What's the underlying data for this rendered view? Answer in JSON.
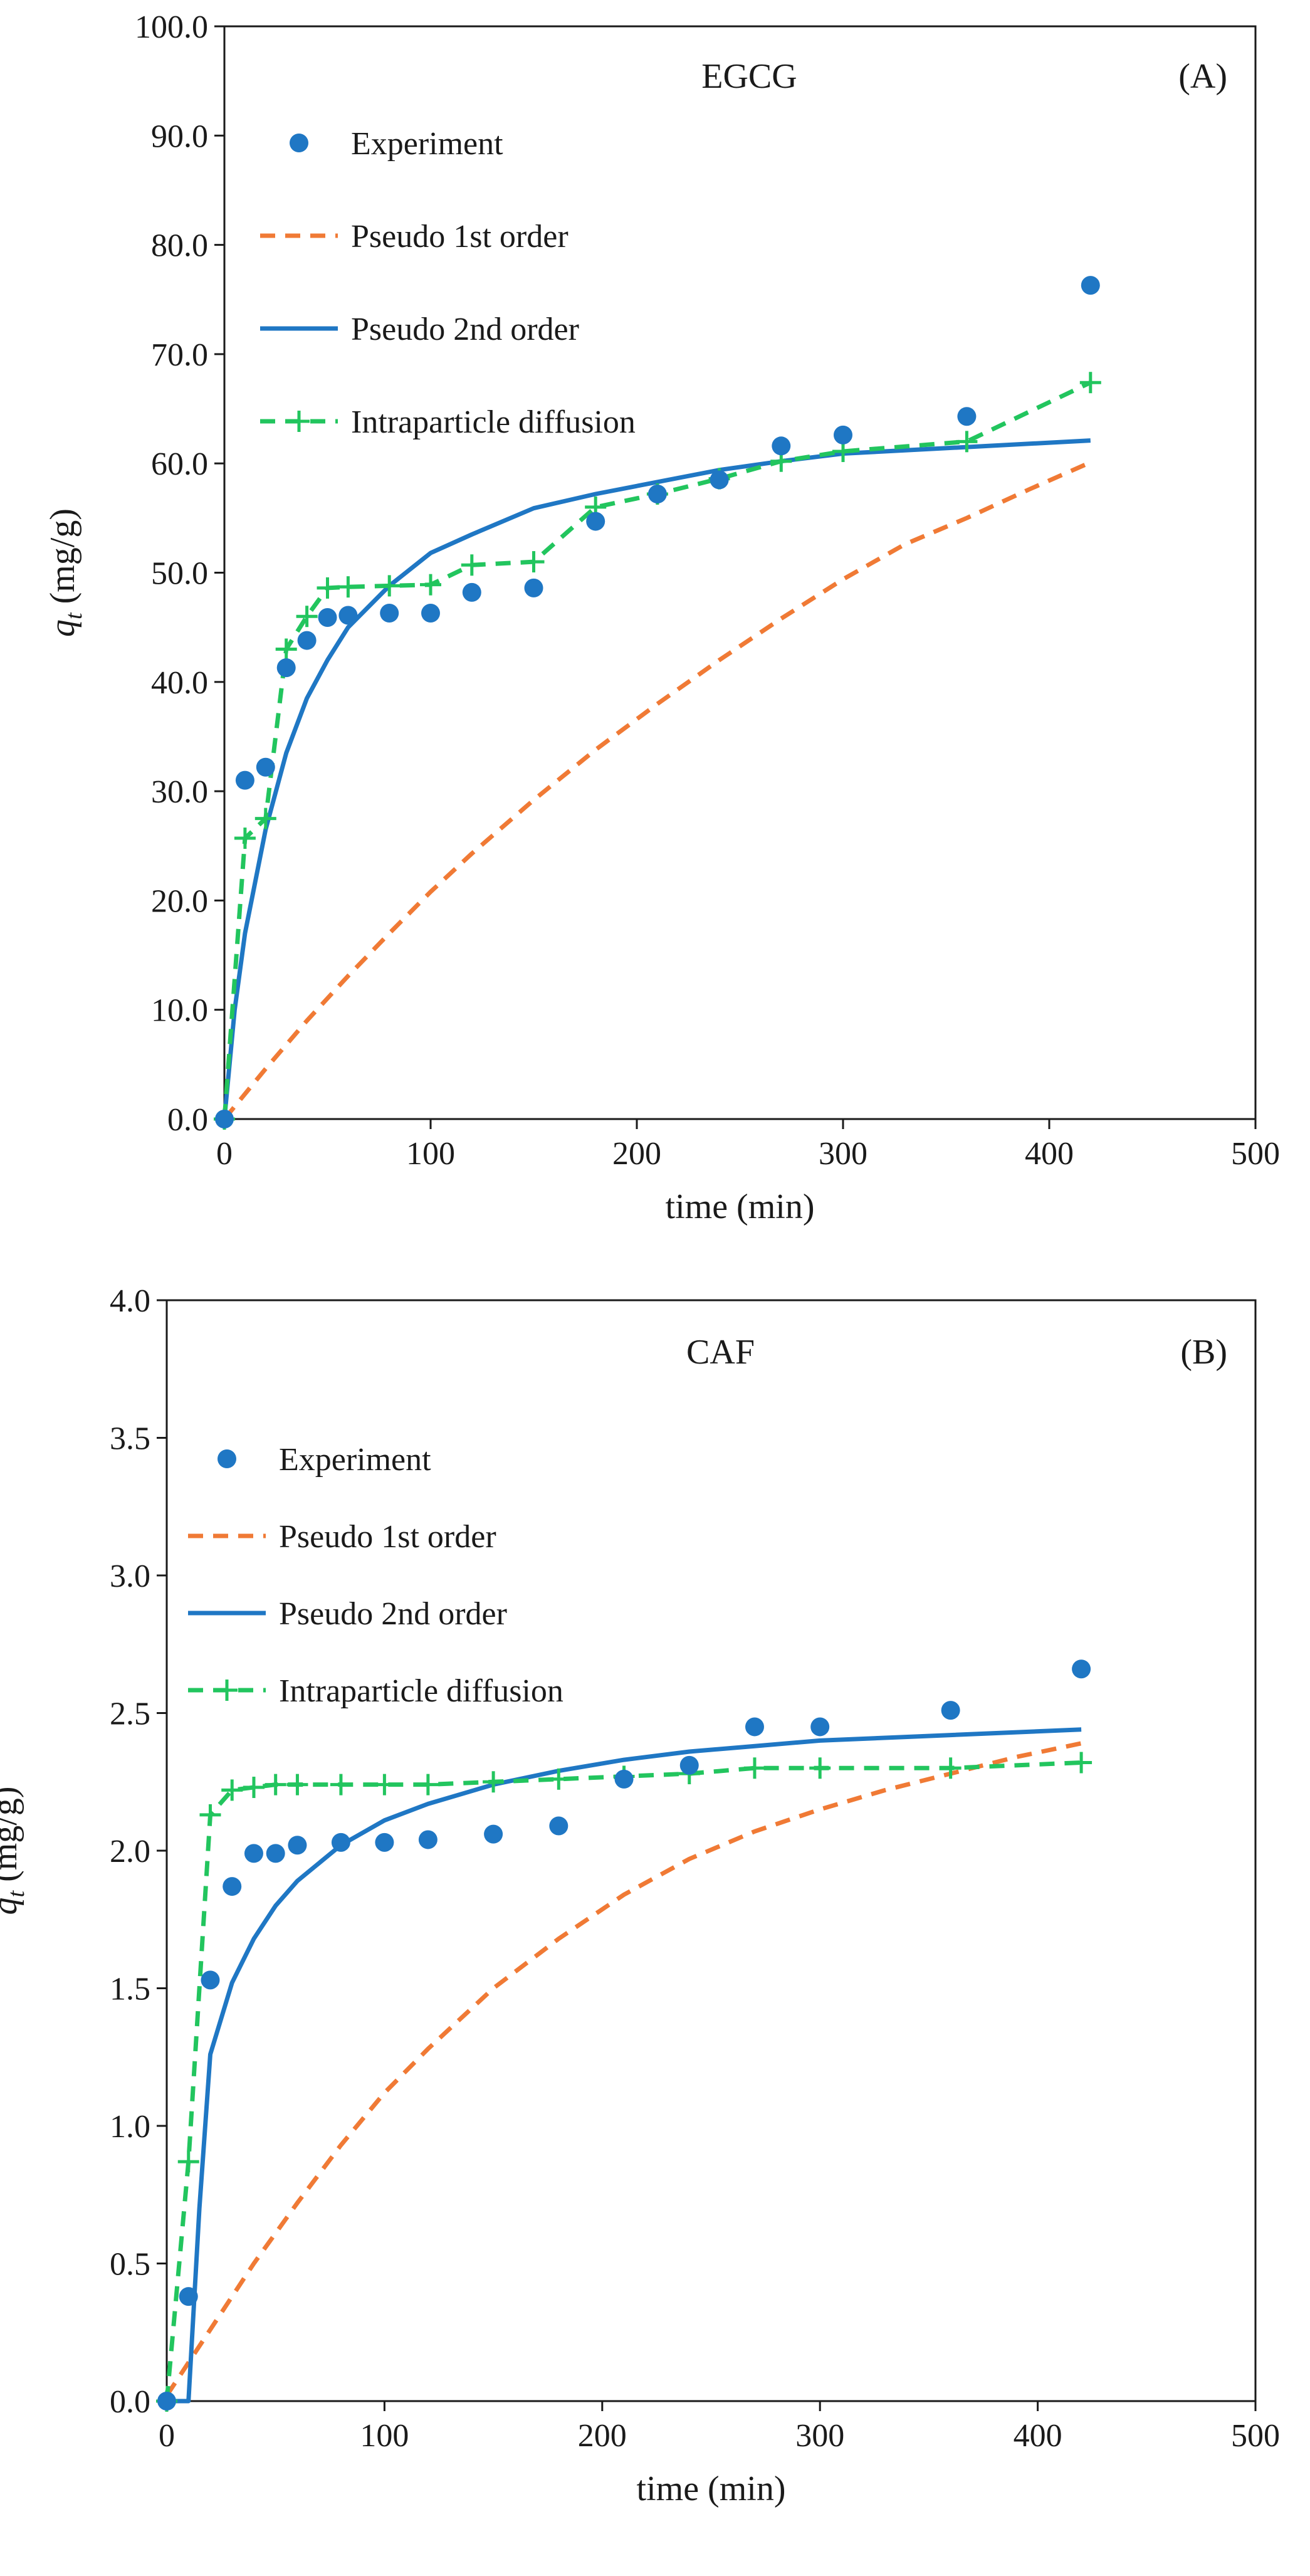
{
  "colors": {
    "experiment": "#1f77c4",
    "pseudo1": "#f07a35",
    "pseudo2": "#1f77c4",
    "intraparticle": "#22c55e",
    "axis": "#1a1a1a"
  },
  "chart_data": [
    {
      "type": "scatter",
      "title": "EGCG",
      "panel_label": "(A)",
      "xlabel": "time (min)",
      "ylabel_main": "q",
      "ylabel_sub": "t",
      "ylabel_units": " (mg/g)",
      "xlim": [
        0,
        500
      ],
      "ylim": [
        0,
        100
      ],
      "xticks": [
        0,
        100,
        200,
        300,
        400,
        500
      ],
      "yticks": [
        0,
        10,
        20,
        30,
        40,
        50,
        60,
        70,
        80,
        90,
        100
      ],
      "ytick_labels": [
        "0.0",
        "10.0",
        "20.0",
        "30.0",
        "40.0",
        "50.0",
        "60.0",
        "70.0",
        "80.0",
        "90.0",
        "100.0"
      ],
      "legend_position": "top-left",
      "series": [
        {
          "name": "Experiment",
          "style": "marker",
          "color_key": "experiment",
          "x": [
            0,
            10,
            20,
            30,
            40,
            50,
            60,
            80,
            100,
            120,
            150,
            180,
            210,
            240,
            270,
            300,
            360,
            420
          ],
          "y": [
            0,
            31.0,
            32.2,
            41.3,
            43.8,
            45.9,
            46.1,
            46.3,
            46.3,
            48.2,
            48.6,
            54.7,
            57.2,
            58.5,
            61.6,
            62.6,
            64.3,
            76.3
          ]
        },
        {
          "name": "Pseudo 1st order",
          "style": "dashed",
          "color_key": "pseudo1",
          "x": [
            0,
            20,
            40,
            60,
            80,
            100,
            120,
            150,
            180,
            210,
            240,
            270,
            300,
            330,
            360,
            390,
            420
          ],
          "y": [
            0,
            4.6,
            9.0,
            13.1,
            17.0,
            20.8,
            24.3,
            29.2,
            33.8,
            38.0,
            42.0,
            45.8,
            49.4,
            52.6,
            55.0,
            57.6,
            60.1
          ]
        },
        {
          "name": "Pseudo 2nd order",
          "style": "solid",
          "color_key": "pseudo2",
          "x": [
            0,
            5,
            10,
            20,
            30,
            40,
            50,
            60,
            80,
            100,
            120,
            150,
            180,
            210,
            240,
            270,
            300,
            360,
            420
          ],
          "y": [
            0,
            10.0,
            17.0,
            26.5,
            33.5,
            38.5,
            42.0,
            45.0,
            48.8,
            51.8,
            53.5,
            55.9,
            57.2,
            58.3,
            59.4,
            60.2,
            60.9,
            61.5,
            62.1
          ]
        },
        {
          "name": "Intraparticle diffusion",
          "style": "dashed-plus",
          "color_key": "intraparticle",
          "x": [
            0,
            10,
            20,
            30,
            40,
            50,
            60,
            80,
            100,
            120,
            150,
            180,
            210,
            240,
            270,
            300,
            360,
            420
          ],
          "y": [
            0,
            25.7,
            27.5,
            43.0,
            46.0,
            48.6,
            48.7,
            48.8,
            48.9,
            50.7,
            51.0,
            56.0,
            57.2,
            58.6,
            60.2,
            61.1,
            62.0,
            67.4
          ]
        }
      ]
    },
    {
      "type": "scatter",
      "title": "CAF",
      "panel_label": "(B)",
      "xlabel": "time (min)",
      "ylabel_main": "q",
      "ylabel_sub": "t",
      "ylabel_units": " (mg/g)",
      "xlim": [
        0,
        500
      ],
      "ylim": [
        0,
        4
      ],
      "xticks": [
        0,
        100,
        200,
        300,
        400,
        500
      ],
      "yticks": [
        0,
        0.5,
        1.0,
        1.5,
        2.0,
        2.5,
        3.0,
        3.5,
        4.0
      ],
      "ytick_labels": [
        "0.0",
        "0.5",
        "1.0",
        "1.5",
        "2.0",
        "2.5",
        "3.0",
        "3.5",
        "4.0"
      ],
      "legend_position": "top-left",
      "series": [
        {
          "name": "Experiment",
          "style": "marker",
          "color_key": "experiment",
          "x": [
            0,
            10,
            20,
            30,
            40,
            50,
            60,
            80,
            100,
            120,
            150,
            180,
            210,
            240,
            270,
            300,
            360,
            420
          ],
          "y": [
            0,
            0.38,
            1.53,
            1.87,
            1.99,
            1.99,
            2.02,
            2.03,
            2.03,
            2.04,
            2.06,
            2.09,
            2.26,
            2.31,
            2.45,
            2.45,
            2.51,
            2.66
          ]
        },
        {
          "name": "Pseudo 1st order",
          "style": "dashed",
          "color_key": "pseudo1",
          "x": [
            0,
            20,
            40,
            60,
            80,
            100,
            120,
            150,
            180,
            210,
            240,
            270,
            300,
            330,
            360,
            390,
            420
          ],
          "y": [
            0.02,
            0.26,
            0.5,
            0.72,
            0.93,
            1.12,
            1.28,
            1.5,
            1.68,
            1.84,
            1.97,
            2.07,
            2.15,
            2.22,
            2.28,
            2.34,
            2.39
          ]
        },
        {
          "name": "Pseudo 2nd order",
          "style": "solid",
          "color_key": "pseudo2",
          "x": [
            0,
            5,
            10,
            15,
            20,
            30,
            40,
            50,
            60,
            80,
            100,
            120,
            150,
            180,
            210,
            240,
            270,
            300,
            360,
            420
          ],
          "y": [
            0,
            0,
            0,
            0.7,
            1.26,
            1.52,
            1.68,
            1.8,
            1.89,
            2.02,
            2.11,
            2.17,
            2.24,
            2.29,
            2.33,
            2.36,
            2.38,
            2.4,
            2.42,
            2.44
          ]
        },
        {
          "name": "Intraparticle diffusion",
          "style": "dashed-plus",
          "color_key": "intraparticle",
          "x": [
            0,
            10,
            20,
            30,
            40,
            50,
            60,
            80,
            100,
            120,
            150,
            180,
            210,
            240,
            270,
            300,
            360,
            420
          ],
          "y": [
            0,
            0.87,
            2.13,
            2.22,
            2.23,
            2.24,
            2.24,
            2.24,
            2.24,
            2.24,
            2.25,
            2.26,
            2.27,
            2.28,
            2.3,
            2.3,
            2.3,
            2.32
          ]
        }
      ]
    }
  ]
}
